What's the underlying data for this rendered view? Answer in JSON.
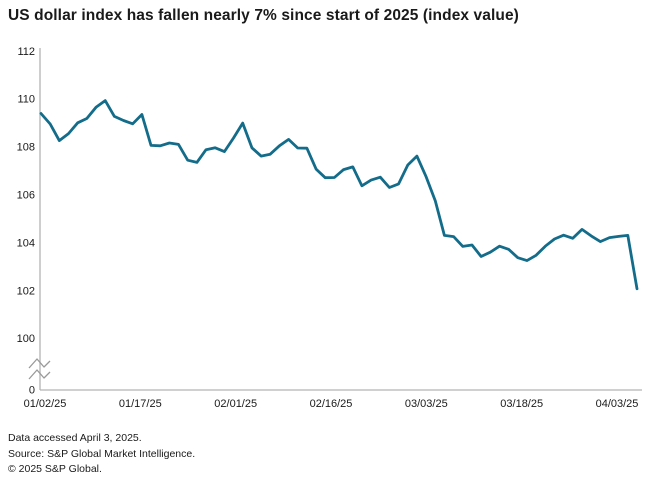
{
  "header": {
    "title": "US dollar index has fallen nearly 7% since start of 2025 (index value)"
  },
  "footer": {
    "lines": [
      "Data accessed April 3, 2025.",
      "Source: S&P Global Market Intelligence.",
      "© 2025 S&P Global."
    ]
  },
  "colors": {
    "line": "#136c89",
    "axis": "#b3b3b3",
    "break_mark": "#999999",
    "text": "#1a1a1a"
  },
  "chart_data": {
    "type": "line",
    "title": "US dollar index has fallen nearly 7% since start of 2025 (index value)",
    "xlabel": "",
    "ylabel": "index value",
    "grid": false,
    "legend": "none",
    "axis_break_between": [
      0,
      100
    ],
    "ylim": [
      100,
      112
    ],
    "y_ticks": [
      112,
      110,
      108,
      106,
      104,
      102,
      100
    ],
    "y_origin_label": "0",
    "x_tick_labels": [
      "01/02/25",
      "01/17/25",
      "02/01/25",
      "02/16/25",
      "03/03/25",
      "03/18/25",
      "04/03/25"
    ],
    "x": [
      "01/02/25",
      "01/03/25",
      "01/06/25",
      "01/07/25",
      "01/08/25",
      "01/09/25",
      "01/10/25",
      "01/13/25",
      "01/14/25",
      "01/15/25",
      "01/16/25",
      "01/17/25",
      "01/20/25",
      "01/21/25",
      "01/22/25",
      "01/23/25",
      "01/24/25",
      "01/27/25",
      "01/28/25",
      "01/29/25",
      "01/30/25",
      "01/31/25",
      "02/03/25",
      "02/04/25",
      "02/05/25",
      "02/06/25",
      "02/07/25",
      "02/10/25",
      "02/11/25",
      "02/12/25",
      "02/13/25",
      "02/14/25",
      "02/17/25",
      "02/18/25",
      "02/19/25",
      "02/20/25",
      "02/21/25",
      "02/24/25",
      "02/25/25",
      "02/26/25",
      "02/27/25",
      "02/28/25",
      "03/03/25",
      "03/04/25",
      "03/05/25",
      "03/06/25",
      "03/07/25",
      "03/10/25",
      "03/11/25",
      "03/12/25",
      "03/13/25",
      "03/14/25",
      "03/17/25",
      "03/18/25",
      "03/19/25",
      "03/20/25",
      "03/21/25",
      "03/24/25",
      "03/25/25",
      "03/26/25",
      "03/27/25",
      "03/28/25",
      "03/31/25",
      "04/01/25",
      "04/02/25",
      "04/03/25"
    ],
    "values": [
      109.39,
      108.95,
      108.26,
      108.55,
      109.0,
      109.18,
      109.65,
      109.93,
      109.27,
      109.1,
      108.96,
      109.35,
      108.06,
      108.04,
      108.16,
      108.1,
      107.44,
      107.35,
      107.88,
      107.96,
      107.8,
      108.37,
      108.99,
      107.96,
      107.61,
      107.69,
      108.04,
      108.31,
      107.95,
      107.94,
      107.07,
      106.71,
      106.72,
      107.05,
      107.16,
      106.37,
      106.61,
      106.73,
      106.3,
      106.45,
      107.24,
      107.61,
      106.75,
      105.74,
      104.3,
      104.25,
      103.84,
      103.9,
      103.42,
      103.6,
      103.85,
      103.72,
      103.37,
      103.25,
      103.47,
      103.85,
      104.15,
      104.31,
      104.18,
      104.55,
      104.28,
      104.04,
      104.21,
      104.26,
      104.3,
      102.07
    ]
  }
}
